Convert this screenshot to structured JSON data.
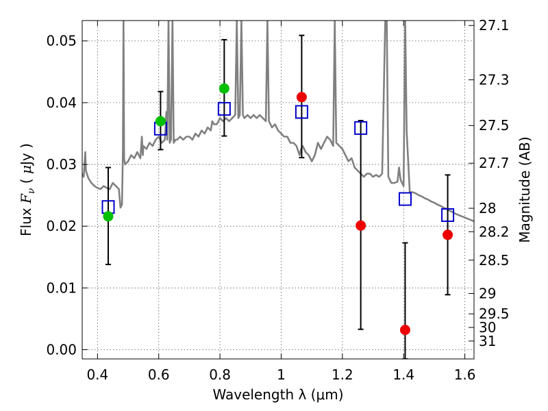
{
  "chart_data": {
    "type": "scatter",
    "xlabel": "Wavelength  λ (μm)",
    "ylabel_left": "Flux  F_ν  ( μJy )",
    "ylabel_right": "Magnitude (AB)",
    "xlim": [
      0.35,
      1.63
    ],
    "ylim": [
      -0.0015,
      0.0533
    ],
    "x_ticks": [
      0.4,
      0.6,
      0.8,
      1.0,
      1.2,
      1.4,
      1.6
    ],
    "x_tick_labels": [
      "0.4",
      "0.6",
      "0.8",
      "1",
      "1.2",
      "1.4",
      "1.6"
    ],
    "y_ticks": [
      0.0,
      0.01,
      0.02,
      0.03,
      0.04,
      0.05
    ],
    "y_tick_labels": [
      "0.00",
      "0.01",
      "0.02",
      "0.03",
      "0.04",
      "0.05"
    ],
    "right_ticks": [
      {
        "label": "27.1",
        "flux": 0.0525
      },
      {
        "label": "27.3",
        "flux": 0.0437
      },
      {
        "label": "27.5",
        "flux": 0.0363
      },
      {
        "label": "27.7",
        "flux": 0.0302
      },
      {
        "label": "28",
        "flux": 0.0229
      },
      {
        "label": "28.2",
        "flux": 0.0191
      },
      {
        "label": "28.5",
        "flux": 0.0145
      },
      {
        "label": "29",
        "flux": 0.0091
      },
      {
        "label": "29.5",
        "flux": 0.0058
      },
      {
        "label": "30",
        "flux": 0.0036
      },
      {
        "label": "31",
        "flux": 0.0014
      }
    ],
    "grid": true,
    "series": [
      {
        "name": "model_spectrum",
        "kind": "line",
        "color": "#808080",
        "points": [
          [
            0.35,
            0.0285
          ],
          [
            0.355,
            0.028
          ],
          [
            0.36,
            0.032
          ],
          [
            0.362,
            0.029
          ],
          [
            0.37,
            0.0278
          ],
          [
            0.38,
            0.027
          ],
          [
            0.39,
            0.0265
          ],
          [
            0.4,
            0.0262
          ],
          [
            0.41,
            0.026
          ],
          [
            0.42,
            0.0265
          ],
          [
            0.43,
            0.0262
          ],
          [
            0.44,
            0.026
          ],
          [
            0.45,
            0.027
          ],
          [
            0.46,
            0.0265
          ],
          [
            0.47,
            0.026
          ],
          [
            0.475,
            0.023
          ],
          [
            0.48,
            0.0235
          ],
          [
            0.483,
            0.032
          ],
          [
            0.485,
            0.0533
          ],
          [
            0.487,
            0.031
          ],
          [
            0.49,
            0.03
          ],
          [
            0.5,
            0.0305
          ],
          [
            0.51,
            0.0315
          ],
          [
            0.52,
            0.031
          ],
          [
            0.53,
            0.032
          ],
          [
            0.54,
            0.031
          ],
          [
            0.545,
            0.0345
          ],
          [
            0.548,
            0.0315
          ],
          [
            0.55,
            0.033
          ],
          [
            0.56,
            0.0325
          ],
          [
            0.57,
            0.0335
          ],
          [
            0.58,
            0.033
          ],
          [
            0.59,
            0.034
          ],
          [
            0.6,
            0.0345
          ],
          [
            0.61,
            0.0335
          ],
          [
            0.62,
            0.034
          ],
          [
            0.625,
            0.0385
          ],
          [
            0.628,
            0.034
          ],
          [
            0.632,
            0.0533
          ],
          [
            0.636,
            0.0335
          ],
          [
            0.64,
            0.034
          ],
          [
            0.645,
            0.0533
          ],
          [
            0.649,
            0.0335
          ],
          [
            0.655,
            0.034
          ],
          [
            0.66,
            0.034
          ],
          [
            0.67,
            0.0345
          ],
          [
            0.68,
            0.034
          ],
          [
            0.69,
            0.0345
          ],
          [
            0.7,
            0.0345
          ],
          [
            0.71,
            0.034
          ],
          [
            0.72,
            0.035
          ],
          [
            0.73,
            0.0345
          ],
          [
            0.74,
            0.0355
          ],
          [
            0.75,
            0.035
          ],
          [
            0.76,
            0.036
          ],
          [
            0.77,
            0.0355
          ],
          [
            0.775,
            0.037
          ],
          [
            0.78,
            0.0365
          ],
          [
            0.79,
            0.0365
          ],
          [
            0.8,
            0.0375
          ],
          [
            0.81,
            0.037
          ],
          [
            0.82,
            0.0375
          ],
          [
            0.83,
            0.037
          ],
          [
            0.84,
            0.0375
          ],
          [
            0.85,
            0.038
          ],
          [
            0.855,
            0.0533
          ],
          [
            0.86,
            0.0375
          ],
          [
            0.865,
            0.038
          ],
          [
            0.87,
            0.0533
          ],
          [
            0.875,
            0.038
          ],
          [
            0.88,
            0.0375
          ],
          [
            0.89,
            0.038
          ],
          [
            0.9,
            0.0375
          ],
          [
            0.91,
            0.038
          ],
          [
            0.92,
            0.0375
          ],
          [
            0.93,
            0.038
          ],
          [
            0.94,
            0.0375
          ],
          [
            0.95,
            0.037
          ],
          [
            0.955,
            0.0533
          ],
          [
            0.96,
            0.037
          ],
          [
            0.97,
            0.036
          ],
          [
            0.98,
            0.0365
          ],
          [
            0.99,
            0.0355
          ],
          [
            1.0,
            0.035
          ],
          [
            1.01,
            0.0345
          ],
          [
            1.02,
            0.0345
          ],
          [
            1.03,
            0.0335
          ],
          [
            1.04,
            0.0335
          ],
          [
            1.05,
            0.033
          ],
          [
            1.06,
            0.0315
          ],
          [
            1.065,
            0.0325
          ],
          [
            1.07,
            0.033
          ],
          [
            1.08,
            0.032
          ],
          [
            1.09,
            0.0315
          ],
          [
            1.1,
            0.0305
          ],
          [
            1.11,
            0.0315
          ],
          [
            1.12,
            0.0335
          ],
          [
            1.13,
            0.0325
          ],
          [
            1.14,
            0.0335
          ],
          [
            1.15,
            0.0345
          ],
          [
            1.16,
            0.034
          ],
          [
            1.17,
            0.033
          ],
          [
            1.175,
            0.0533
          ],
          [
            1.18,
            0.0335
          ],
          [
            1.19,
            0.033
          ],
          [
            1.2,
            0.0325
          ],
          [
            1.21,
            0.0315
          ],
          [
            1.22,
            0.0305
          ],
          [
            1.23,
            0.031
          ],
          [
            1.24,
            0.0295
          ],
          [
            1.25,
            0.029
          ],
          [
            1.26,
            0.0285
          ],
          [
            1.27,
            0.028
          ],
          [
            1.28,
            0.0285
          ],
          [
            1.29,
            0.0285
          ],
          [
            1.3,
            0.028
          ],
          [
            1.31,
            0.0283
          ],
          [
            1.32,
            0.028
          ],
          [
            1.33,
            0.0285
          ],
          [
            1.34,
            0.0533
          ],
          [
            1.345,
            0.0533
          ],
          [
            1.35,
            0.028
          ],
          [
            1.36,
            0.027
          ],
          [
            1.37,
            0.027
          ],
          [
            1.38,
            0.0272
          ],
          [
            1.385,
            0.0295
          ],
          [
            1.39,
            0.0275
          ],
          [
            1.4,
            0.0265
          ],
          [
            1.405,
            0.0533
          ],
          [
            1.41,
            0.0353
          ],
          [
            1.42,
            0.0255
          ],
          [
            1.43,
            0.0255
          ],
          [
            1.44,
            0.0253
          ],
          [
            1.45,
            0.025
          ],
          [
            1.46,
            0.0248
          ],
          [
            1.47,
            0.0245
          ],
          [
            1.48,
            0.0243
          ],
          [
            1.49,
            0.024
          ],
          [
            1.5,
            0.0238
          ],
          [
            1.51,
            0.0235
          ],
          [
            1.52,
            0.0233
          ],
          [
            1.53,
            0.023
          ],
          [
            1.54,
            0.0228
          ],
          [
            1.55,
            0.0225
          ],
          [
            1.56,
            0.0223
          ],
          [
            1.57,
            0.022
          ],
          [
            1.58,
            0.0218
          ],
          [
            1.59,
            0.0216
          ],
          [
            1.6,
            0.0214
          ],
          [
            1.61,
            0.0212
          ],
          [
            1.62,
            0.021
          ],
          [
            1.63,
            0.0208
          ]
        ]
      },
      {
        "name": "observed_errorbars",
        "kind": "errorbar",
        "color": "#000000",
        "points": [
          {
            "x": 0.435,
            "low": 0.0138,
            "high": 0.0295
          },
          {
            "x": 0.606,
            "low": 0.0324,
            "high": 0.0418
          },
          {
            "x": 0.814,
            "low": 0.0346,
            "high": 0.0502
          },
          {
            "x": 1.067,
            "low": 0.0311,
            "high": 0.0509
          },
          {
            "x": 1.26,
            "low": 0.0033,
            "high": 0.0371
          },
          {
            "x": 1.405,
            "low": -0.0015,
            "high": 0.0173
          },
          {
            "x": 1.544,
            "low": 0.0089,
            "high": 0.0283
          }
        ]
      },
      {
        "name": "model_photometry",
        "kind": "open_square",
        "color": "#0000cc",
        "points": [
          [
            0.435,
            0.0231
          ],
          [
            0.606,
            0.0358
          ],
          [
            0.814,
            0.039
          ],
          [
            1.067,
            0.0385
          ],
          [
            1.26,
            0.0359
          ],
          [
            1.405,
            0.0244
          ],
          [
            1.544,
            0.0218
          ]
        ]
      },
      {
        "name": "observed_detections",
        "kind": "filled_circle",
        "color": "#00c000",
        "points": [
          [
            0.435,
            0.0216
          ],
          [
            0.606,
            0.037
          ],
          [
            0.814,
            0.0423
          ]
        ]
      },
      {
        "name": "observed_nondetections",
        "kind": "filled_circle",
        "color": "#ee0000",
        "points": [
          [
            1.067,
            0.0409
          ],
          [
            1.26,
            0.0201
          ],
          [
            1.405,
            0.0032
          ],
          [
            1.544,
            0.0186
          ]
        ]
      }
    ]
  }
}
